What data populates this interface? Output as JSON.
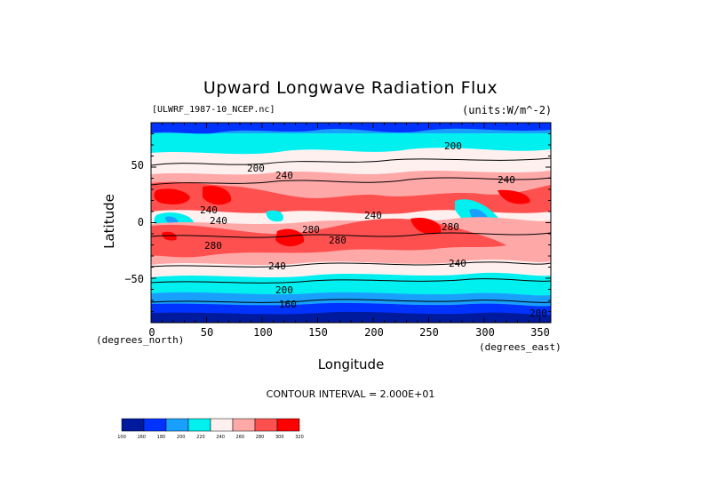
{
  "chart_data": {
    "type": "heatmap",
    "title": "Upward Longwave Radiation Flux",
    "subtitle_left": "[ULWRF_1987-10_NCEP.nc]",
    "subtitle_right": "(units:W/m^-2)",
    "xlabel": "Longitude",
    "ylabel": "Latitude",
    "x_unit_label": "(degrees_east)",
    "y_unit_label": "(degrees_north)",
    "xlim": [
      0,
      360
    ],
    "ylim": [
      -90,
      90
    ],
    "x_ticks": [
      "0",
      "50",
      "100",
      "150",
      "200",
      "250",
      "300",
      "350"
    ],
    "y_ticks": [
      "50",
      "0",
      "−50"
    ],
    "contour_interval_text": "CONTOUR INTERVAL = 2.000E+01",
    "contour_labels": [
      "200",
      "200",
      "240",
      "240",
      "240",
      "240",
      "240",
      "280",
      "280",
      "280",
      "280",
      "240",
      "240",
      "200",
      "160",
      "200"
    ],
    "colorbar": {
      "levels": [
        100,
        160,
        180,
        200,
        220,
        240,
        260,
        280,
        300,
        320
      ],
      "colors": [
        "#001a9e",
        "#0033ff",
        "#19a0ff",
        "#00f0f0",
        "#fff0f0",
        "#ffa8a8",
        "#ff5050",
        "#ff0000"
      ],
      "tick_labels": [
        "100",
        "160",
        "180",
        "200",
        "220",
        "240",
        "260",
        "280",
        "300",
        "320"
      ]
    }
  }
}
